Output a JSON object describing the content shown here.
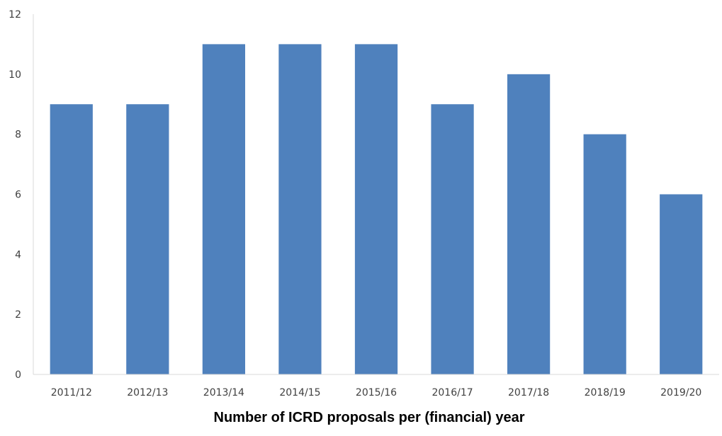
{
  "chart_data": {
    "type": "bar",
    "categories": [
      "2011/12",
      "2012/13",
      "2013/14",
      "2014/15",
      "2015/16",
      "2016/17",
      "2017/18",
      "2018/19",
      "2019/20"
    ],
    "values": [
      9,
      9,
      11,
      11,
      11,
      9,
      10,
      8,
      6
    ],
    "title": "",
    "xlabel": "Number of ICRD proposals per (financial) year",
    "ylabel": "",
    "ylim": [
      0,
      12
    ],
    "yticks": [
      0,
      2,
      4,
      6,
      8,
      10,
      12
    ],
    "grid": false,
    "legend": "none",
    "bar_color": "#4f81bd",
    "axis_color": "#d9d9d9"
  }
}
